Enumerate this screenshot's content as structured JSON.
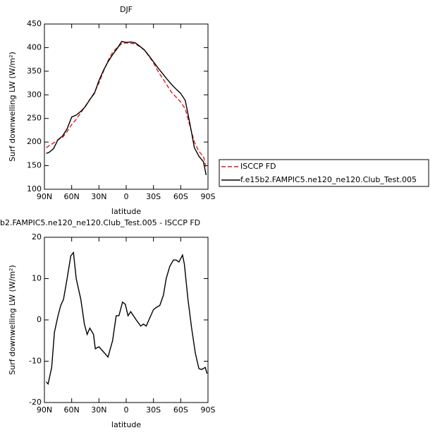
{
  "chart_data": [
    {
      "type": "line",
      "title": "DJF",
      "xlabel": "latitude",
      "ylabel": "Surf downwelling LW (W/m²)",
      "xlim": [
        90,
        -90
      ],
      "xticks": [
        {
          "value": 90,
          "label": "90N"
        },
        {
          "value": 60,
          "label": "60N"
        },
        {
          "value": 30,
          "label": "30N"
        },
        0,
        {
          "value": -30,
          "label": "30S"
        },
        {
          "value": -60,
          "label": "60S"
        },
        {
          "value": -90,
          "label": "90S"
        }
      ],
      "ylim": [
        100,
        450
      ],
      "yticks": [
        100,
        150,
        200,
        250,
        300,
        350,
        400,
        450
      ],
      "legend": "right",
      "x": [
        88,
        85,
        80,
        75,
        70,
        65,
        60,
        55,
        50,
        45,
        40,
        35,
        30,
        25,
        20,
        15,
        10,
        5,
        0,
        -5,
        -10,
        -15,
        -20,
        -25,
        -30,
        -35,
        -40,
        -45,
        -50,
        -55,
        -60,
        -65,
        -70,
        -75,
        -80,
        -85,
        -88
      ],
      "series": [
        {
          "name": "ISCCP FD",
          "color": "#e41a1c",
          "dash": true,
          "values": [
            188,
            192,
            198,
            205,
            210,
            222,
            237,
            248,
            262,
            276,
            290,
            305,
            325,
            350,
            372,
            390,
            400,
            408,
            410,
            409,
            408,
            402,
            395,
            382,
            368,
            350,
            335,
            320,
            305,
            295,
            285,
            270,
            235,
            200,
            180,
            170,
            145
          ]
        },
        {
          "name": "f.e15b2.FAMPIC5.ne120_ne120.Club_Test.005",
          "color": "#000000",
          "dash": false,
          "values": [
            176,
            178,
            186,
            205,
            213,
            228,
            253,
            257,
            265,
            275,
            290,
            303,
            330,
            352,
            370,
            385,
            398,
            413,
            411,
            412,
            410,
            403,
            395,
            383,
            370,
            357,
            345,
            333,
            322,
            312,
            303,
            288,
            240,
            188,
            170,
            158,
            130
          ]
        }
      ]
    },
    {
      "type": "line",
      "title": "b2.FAMPIC5.ne120_ne120.Club_Test.005 - ISCCP FD",
      "xlabel": "latitude",
      "ylabel": "Surf downwelling LW (W/m²)",
      "xlim": [
        90,
        -90
      ],
      "xticks": [
        {
          "value": 90,
          "label": "90N"
        },
        {
          "value": 60,
          "label": "60N"
        },
        {
          "value": 30,
          "label": "30N"
        },
        0,
        {
          "value": -30,
          "label": "30S"
        },
        {
          "value": -60,
          "label": "60S"
        },
        {
          "value": -90,
          "label": "90S"
        }
      ],
      "ylim": [
        -20,
        20
      ],
      "yticks": [
        -20,
        -10,
        0,
        10,
        20
      ],
      "x": [
        88,
        86,
        82,
        79,
        75,
        72,
        69,
        65,
        61,
        58,
        55,
        50,
        46,
        43,
        40,
        36,
        34,
        30,
        26,
        20,
        15,
        11,
        8,
        4,
        1,
        -2,
        -5,
        -11,
        -16,
        -19,
        -22,
        -25,
        -30,
        -33,
        -37,
        -41,
        -44,
        -48,
        -52,
        -55,
        -58,
        -62,
        -64,
        -68,
        -72,
        -76,
        -80,
        -83,
        -87,
        -89
      ],
      "series": [
        {
          "color": "#000000",
          "dash": false,
          "values": [
            -15,
            -15.5,
            -11.5,
            -3,
            1,
            3.5,
            5,
            10,
            15.5,
            16.3,
            10,
            5,
            -1,
            -3.5,
            -2,
            -3.5,
            -7,
            -6.5,
            -7.5,
            -9,
            -5,
            1,
            1,
            4.3,
            3.8,
            1,
            2,
            0,
            -1.5,
            -1,
            -1.5,
            0,
            2.5,
            3,
            3.5,
            6,
            10,
            13,
            14.5,
            14.5,
            14,
            15.7,
            13.5,
            5,
            -2,
            -8,
            -11.8,
            -12,
            -11.5,
            -13
          ]
        }
      ]
    }
  ]
}
